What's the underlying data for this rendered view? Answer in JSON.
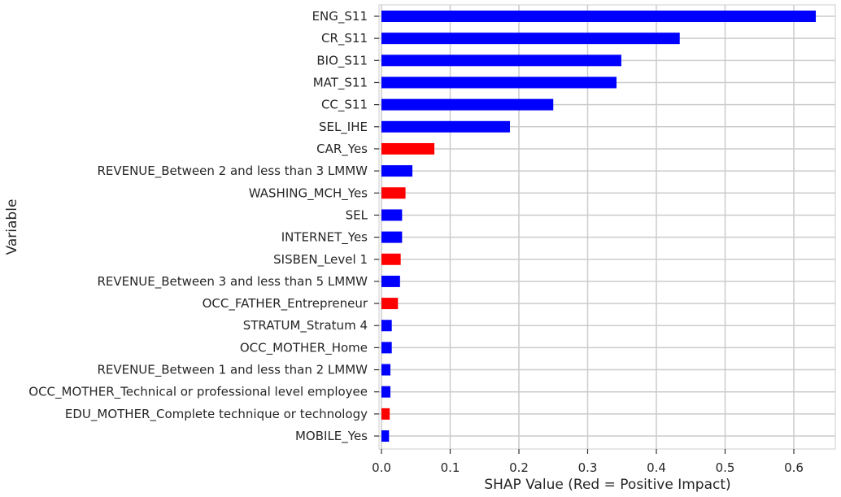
{
  "chart_data": {
    "type": "bar",
    "orientation": "horizontal",
    "xlabel": "SHAP Value (Red = Positive Impact)",
    "ylabel": "Variable",
    "xlim": [
      0,
      0.655
    ],
    "xticks": [
      "0.0",
      "0.1",
      "0.2",
      "0.3",
      "0.4",
      "0.5",
      "0.6"
    ],
    "grid": true,
    "colors": {
      "positive": "#ff0000",
      "negative": "#0000ff"
    },
    "bars": [
      {
        "label": "ENG_S11",
        "value": 0.632,
        "positive": false
      },
      {
        "label": "CR_S11",
        "value": 0.434,
        "positive": false
      },
      {
        "label": "BIO_S11",
        "value": 0.349,
        "positive": false
      },
      {
        "label": "MAT_S11",
        "value": 0.342,
        "positive": false
      },
      {
        "label": "CC_S11",
        "value": 0.25,
        "positive": false
      },
      {
        "label": "SEL_IHE",
        "value": 0.187,
        "positive": false
      },
      {
        "label": "CAR_Yes",
        "value": 0.077,
        "positive": true
      },
      {
        "label": "REVENUE_Between 2 and less than 3 LMMW",
        "value": 0.045,
        "positive": false
      },
      {
        "label": "WASHING_MCH_Yes",
        "value": 0.035,
        "positive": true
      },
      {
        "label": "SEL",
        "value": 0.03,
        "positive": false
      },
      {
        "label": "INTERNET_Yes",
        "value": 0.03,
        "positive": false
      },
      {
        "label": "SISBEN_Level 1",
        "value": 0.028,
        "positive": true
      },
      {
        "label": "REVENUE_Between 3 and less than 5 LMMW",
        "value": 0.027,
        "positive": false
      },
      {
        "label": "OCC_FATHER_Entrepreneur",
        "value": 0.024,
        "positive": true
      },
      {
        "label": "STRATUM_Stratum 4",
        "value": 0.015,
        "positive": false
      },
      {
        "label": "OCC_MOTHER_Home",
        "value": 0.015,
        "positive": false
      },
      {
        "label": "REVENUE_Between 1 and less than 2 LMMW",
        "value": 0.013,
        "positive": false
      },
      {
        "label": "OCC_MOTHER_Technical or professional level employee",
        "value": 0.013,
        "positive": false
      },
      {
        "label": "EDU_MOTHER_Complete technique or technology",
        "value": 0.012,
        "positive": true
      },
      {
        "label": "MOBILE_Yes",
        "value": 0.011,
        "positive": false
      }
    ]
  }
}
